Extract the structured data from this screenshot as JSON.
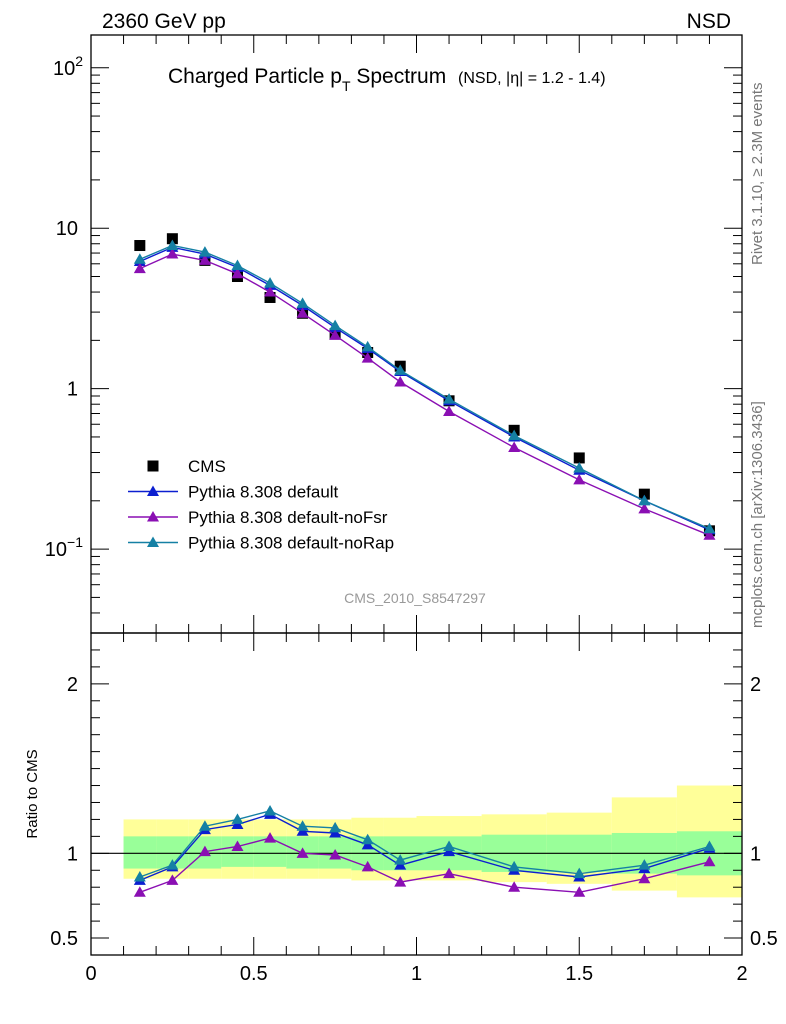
{
  "header": {
    "left": "2360 GeV pp",
    "right": "NSD",
    "side_rivet": "Rivet 3.1.10, ≥ 2.3M events",
    "side_mcplots": "mcplots.cern.ch [arXiv:1306.3436]"
  },
  "title": {
    "main": "Charged Particle p",
    "sub": "T",
    "main_end": " Spectrum",
    "small": "(NSD, |η| = 1.2 - 1.4)"
  },
  "analysis_label": "CMS_2010_S8547297",
  "colors": {
    "data": "#000000",
    "default": "#0c1fd0",
    "noFsr": "#8a0fb3",
    "noRap": "#1580a4",
    "band_inner": "#99ff99",
    "band_outer": "#ffff99"
  },
  "legend": [
    {
      "key": "data",
      "label": "CMS",
      "marker": "square"
    },
    {
      "key": "default",
      "label": "Pythia 8.308 default",
      "marker": "triangle"
    },
    {
      "key": "noFsr",
      "label": "Pythia 8.308 default-noFsr",
      "marker": "triangle"
    },
    {
      "key": "noRap",
      "label": "Pythia 8.308 default-noRap",
      "marker": "triangle"
    }
  ],
  "chart_data": [
    {
      "type": "line",
      "title": "Charged Particle pT Spectrum (NSD, |η| = 1.2 - 1.4)",
      "yscale": "log",
      "xlim": [
        0,
        2
      ],
      "ylim": [
        0.03,
        160
      ],
      "ytick_labels": [
        {
          "value": 0.1,
          "base": "10",
          "exp": "−1"
        },
        {
          "value": 1,
          "base": "1",
          "exp": ""
        },
        {
          "value": 10,
          "base": "10",
          "exp": ""
        },
        {
          "value": 100,
          "base": "10",
          "exp": "2"
        }
      ],
      "x": [
        0.15,
        0.25,
        0.35,
        0.45,
        0.55,
        0.65,
        0.75,
        0.85,
        0.95,
        1.1,
        1.3,
        1.5,
        1.7,
        1.9
      ],
      "series": [
        {
          "name": "CMS",
          "key": "data",
          "values": [
            7.8,
            8.6,
            6.3,
            5.0,
            3.7,
            2.95,
            2.2,
            1.68,
            1.38,
            0.84,
            0.55,
            0.37,
            0.22,
            0.13
          ]
        },
        {
          "name": "Pythia 8.308 default",
          "key": "default",
          "values": [
            6.2,
            7.6,
            6.9,
            5.7,
            4.4,
            3.3,
            2.4,
            1.78,
            1.28,
            0.84,
            0.5,
            0.31,
            0.2,
            0.132
          ]
        },
        {
          "name": "Pythia 8.308 default-noFsr",
          "key": "noFsr",
          "values": [
            5.6,
            6.9,
            6.3,
            5.2,
            4.0,
            2.95,
            2.15,
            1.55,
            1.1,
            0.72,
            0.43,
            0.27,
            0.178,
            0.122
          ]
        },
        {
          "name": "Pythia 8.308 default-noRap",
          "key": "noRap",
          "values": [
            6.4,
            7.8,
            7.1,
            5.85,
            4.55,
            3.4,
            2.47,
            1.82,
            1.3,
            0.86,
            0.51,
            0.32,
            0.2,
            0.134
          ]
        }
      ]
    },
    {
      "type": "line",
      "ylabel": "Ratio to CMS",
      "xlim": [
        0,
        2
      ],
      "ylim": [
        0.4,
        2.3
      ],
      "xtick_labels": [
        "0",
        "0.5",
        "1",
        "1.5",
        "2"
      ],
      "xtick_values": [
        0,
        0.5,
        1,
        1.5,
        2
      ],
      "ytick_labels": [
        "0.5",
        "1",
        "2"
      ],
      "ytick_values": [
        0.5,
        1,
        2
      ],
      "x": [
        0.15,
        0.25,
        0.35,
        0.45,
        0.55,
        0.65,
        0.75,
        0.85,
        0.95,
        1.1,
        1.3,
        1.5,
        1.7,
        1.9
      ],
      "bins": [
        [
          0.1,
          0.2
        ],
        [
          0.2,
          0.3
        ],
        [
          0.3,
          0.4
        ],
        [
          0.4,
          0.5
        ],
        [
          0.5,
          0.6
        ],
        [
          0.6,
          0.7
        ],
        [
          0.7,
          0.8
        ],
        [
          0.8,
          0.9
        ],
        [
          0.9,
          1.0
        ],
        [
          1.0,
          1.2
        ],
        [
          1.2,
          1.4
        ],
        [
          1.4,
          1.6
        ],
        [
          1.6,
          1.8
        ],
        [
          1.8,
          2.0
        ]
      ],
      "band_inner": [
        [
          0.91,
          1.1
        ],
        [
          0.91,
          1.1
        ],
        [
          0.91,
          1.1
        ],
        [
          0.92,
          1.1
        ],
        [
          0.92,
          1.1
        ],
        [
          0.91,
          1.1
        ],
        [
          0.91,
          1.1
        ],
        [
          0.9,
          1.1
        ],
        [
          0.9,
          1.1
        ],
        [
          0.9,
          1.1
        ],
        [
          0.89,
          1.11
        ],
        [
          0.89,
          1.11
        ],
        [
          0.88,
          1.12
        ],
        [
          0.87,
          1.13
        ]
      ],
      "band_outer": [
        [
          0.85,
          1.2
        ],
        [
          0.85,
          1.2
        ],
        [
          0.85,
          1.2
        ],
        [
          0.85,
          1.2
        ],
        [
          0.85,
          1.2
        ],
        [
          0.85,
          1.2
        ],
        [
          0.85,
          1.2
        ],
        [
          0.84,
          1.21
        ],
        [
          0.84,
          1.21
        ],
        [
          0.84,
          1.22
        ],
        [
          0.83,
          1.23
        ],
        [
          0.82,
          1.24
        ],
        [
          0.78,
          1.33
        ],
        [
          0.74,
          1.4
        ]
      ],
      "series": [
        {
          "name": "Pythia 8.308 default",
          "key": "default",
          "values": [
            0.84,
            0.92,
            1.14,
            1.17,
            1.23,
            1.13,
            1.12,
            1.05,
            0.93,
            1.01,
            0.9,
            0.86,
            0.91,
            1.03
          ]
        },
        {
          "name": "Pythia 8.308 default-noFsr",
          "key": "noFsr",
          "values": [
            0.77,
            0.84,
            1.01,
            1.04,
            1.09,
            1.0,
            0.99,
            0.92,
            0.83,
            0.88,
            0.8,
            0.77,
            0.85,
            0.95
          ]
        },
        {
          "name": "Pythia 8.308 default-noRap",
          "key": "noRap",
          "values": [
            0.86,
            0.93,
            1.16,
            1.2,
            1.25,
            1.16,
            1.15,
            1.08,
            0.96,
            1.04,
            0.92,
            0.88,
            0.93,
            1.04
          ]
        }
      ]
    }
  ]
}
